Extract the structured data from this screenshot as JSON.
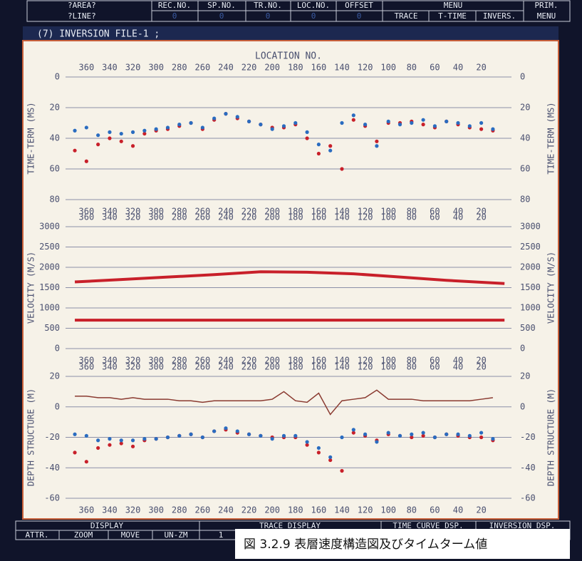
{
  "menu_bar": {
    "area": "?AREA?",
    "line": "?LINE?",
    "fields": [
      "REC.NO.",
      "SP.NO.",
      "TR.NO.",
      "LOC.NO.",
      "OFFSET"
    ],
    "field_values": [
      "0",
      "0",
      "0",
      "0",
      "0"
    ],
    "menu": "MENU",
    "menu_items": [
      "TRACE",
      "T-TIME",
      "INVERS."
    ],
    "prim": [
      "PRIM.",
      "MENU"
    ]
  },
  "window_title": "(7) INVERSION FILE-1 ;",
  "status_bar": {
    "sections": [
      "DISPLAY",
      "TRACE DISPLAY",
      "TIME CURVE DSP.",
      "INVERSION DSP."
    ],
    "buttons": [
      "ATTR.",
      "ZOOM",
      "MOVE",
      "UN-ZM"
    ],
    "page": "1"
  },
  "caption": "図 3.2.9 表層速度構造図及びタイムターム値",
  "chart_data": [
    {
      "type": "scatter",
      "xlabel": "LOCATION NO.",
      "ylabel": "TIME-TERM (MS)",
      "x": [
        370,
        360,
        350,
        340,
        330,
        320,
        310,
        300,
        290,
        280,
        270,
        260,
        250,
        240,
        230,
        220,
        210,
        200,
        190,
        180,
        170,
        160,
        150,
        140,
        130,
        120,
        110,
        100,
        90,
        80,
        70,
        60,
        50,
        40,
        30,
        20,
        10
      ],
      "xlim": [
        378,
        -6
      ],
      "xticks": [
        360,
        340,
        320,
        300,
        280,
        260,
        240,
        220,
        200,
        180,
        160,
        140,
        120,
        100,
        80,
        60,
        40,
        20
      ],
      "ylim": [
        80,
        0
      ],
      "yticks": [
        0,
        20,
        40,
        60,
        80
      ],
      "series": [
        {
          "color": "#c8202a",
          "values": [
            48,
            55,
            44,
            40,
            42,
            45,
            37,
            35,
            34,
            32,
            30,
            34,
            28,
            24,
            27,
            29,
            31,
            33,
            33,
            31,
            40,
            50,
            45,
            60,
            28,
            32,
            42,
            30,
            30,
            29,
            31,
            33,
            29,
            31,
            33,
            34,
            35
          ]
        },
        {
          "color": "#2a6cc0",
          "values": [
            35,
            33,
            38,
            36,
            37,
            36,
            35,
            34,
            33,
            31,
            30,
            33,
            27,
            24,
            26,
            29,
            31,
            34,
            32,
            30,
            36,
            44,
            48,
            30,
            25,
            31,
            45,
            29,
            31,
            30,
            28,
            32,
            29,
            30,
            32,
            30,
            34
          ]
        }
      ]
    },
    {
      "type": "line",
      "ylabel": "VELOCITY (M/S)",
      "x": [
        370,
        330,
        290,
        250,
        210,
        170,
        130,
        90,
        50,
        0
      ],
      "xlim": [
        378,
        -6
      ],
      "xticks": [
        360,
        340,
        320,
        300,
        280,
        260,
        240,
        220,
        200,
        180,
        160,
        140,
        120,
        100,
        80,
        60,
        40,
        20
      ],
      "ylim": [
        0,
        3000
      ],
      "yticks": [
        0,
        500,
        1000,
        1500,
        2000,
        2500,
        3000
      ],
      "series": [
        {
          "color": "#c8202a",
          "values": [
            1640,
            1700,
            1760,
            1820,
            1890,
            1880,
            1840,
            1760,
            1680,
            1600
          ]
        },
        {
          "color": "#c8202a",
          "values": [
            700,
            700,
            700,
            700,
            700,
            700,
            700,
            700,
            700,
            700
          ]
        }
      ]
    },
    {
      "type": "scatter",
      "ylabel": "DEPTH STRUCTURE (M)",
      "x": [
        370,
        360,
        350,
        340,
        330,
        320,
        310,
        300,
        290,
        280,
        270,
        260,
        250,
        240,
        230,
        220,
        210,
        200,
        190,
        180,
        170,
        160,
        150,
        140,
        130,
        120,
        110,
        100,
        90,
        80,
        70,
        60,
        50,
        40,
        30,
        20,
        10
      ],
      "xlim": [
        378,
        -6
      ],
      "xticks": [
        360,
        340,
        320,
        300,
        280,
        260,
        240,
        220,
        200,
        180,
        160,
        140,
        120,
        100,
        80,
        60,
        40,
        20
      ],
      "ylim": [
        -60,
        20
      ],
      "yticks": [
        20,
        0,
        -20,
        -40,
        -60
      ],
      "series": [
        {
          "color": "#8a3a30",
          "mode": "line",
          "values": [
            7,
            7,
            6,
            6,
            5,
            6,
            5,
            5,
            5,
            4,
            4,
            3,
            4,
            4,
            4,
            4,
            4,
            5,
            10,
            4,
            3,
            9,
            -5,
            4,
            5,
            6,
            11,
            5,
            5,
            5,
            4,
            4,
            4,
            4,
            4,
            5,
            6
          ]
        },
        {
          "color": "#c8202a",
          "values": [
            -30,
            -36,
            -27,
            -25,
            -24,
            -26,
            -22,
            -21,
            -20,
            -19,
            -18,
            -20,
            -16,
            -15,
            -17,
            -18,
            -19,
            -20,
            -20,
            -20,
            -25,
            -30,
            -35,
            -42,
            -17,
            -19,
            -22,
            -18,
            -19,
            -20,
            -19,
            -20,
            -18,
            -19,
            -20,
            -20,
            -22
          ]
        },
        {
          "color": "#2a6cc0",
          "values": [
            -18,
            -19,
            -22,
            -21,
            -22,
            -22,
            -21,
            -21,
            -20,
            -19,
            -18,
            -20,
            -16,
            -14,
            -16,
            -18,
            -19,
            -21,
            -19,
            -19,
            -23,
            -27,
            -33,
            -20,
            -15,
            -18,
            -23,
            -17,
            -19,
            -18,
            -17,
            -20,
            -18,
            -18,
            -19,
            -17,
            -21
          ]
        }
      ]
    }
  ]
}
